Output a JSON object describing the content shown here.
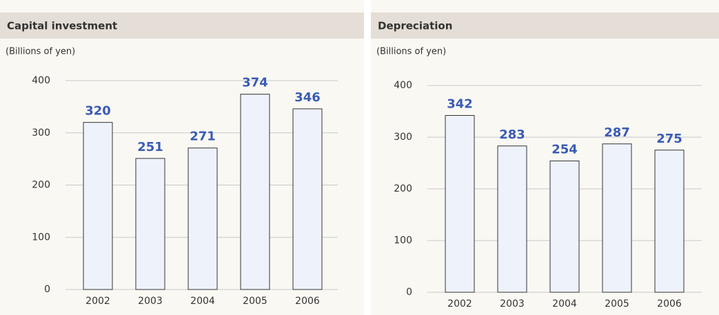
{
  "chart_data": [
    {
      "type": "bar",
      "title": "Capital investment",
      "subtitle": "(Billions of yen)",
      "categories": [
        "2002",
        "2003",
        "2004",
        "2005",
        "2006"
      ],
      "values": [
        320,
        251,
        271,
        374,
        346
      ],
      "color": "#eef2fb",
      "ylim": [
        0,
        400
      ],
      "yticks": [
        0,
        100,
        200,
        300,
        400
      ],
      "grid": true
    },
    {
      "type": "bar",
      "title": "Depreciation",
      "subtitle": "(Billions of yen)",
      "categories": [
        "2002",
        "2003",
        "2004",
        "2005",
        "2006"
      ],
      "values": [
        342,
        283,
        254,
        287,
        275
      ],
      "color": "#eef2fb",
      "ylim": [
        0,
        400
      ],
      "yticks": [
        0,
        100,
        200,
        300,
        400
      ],
      "grid": true
    }
  ]
}
